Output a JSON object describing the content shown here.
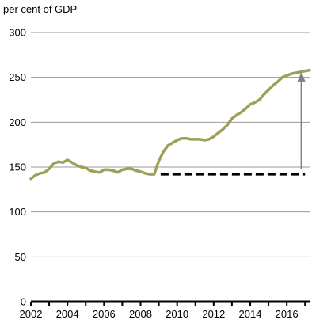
{
  "chart_data": {
    "type": "line",
    "ylabel": "per cent of GDP",
    "ylim": [
      0,
      300
    ],
    "xlim": [
      2002,
      2017.25
    ],
    "y_ticks": [
      0,
      50,
      100,
      150,
      200,
      250,
      300
    ],
    "x_ticks": [
      2002,
      2004,
      2006,
      2008,
      2010,
      2012,
      2014,
      2016
    ],
    "grid": "horizontal",
    "series": [
      {
        "color": "#9ea05a",
        "x": [
          2002.0,
          2002.25,
          2002.5,
          2002.75,
          2003.0,
          2003.25,
          2003.5,
          2003.75,
          2004.0,
          2004.25,
          2004.5,
          2004.75,
          2005.0,
          2005.25,
          2005.5,
          2005.75,
          2006.0,
          2006.25,
          2006.5,
          2006.75,
          2007.0,
          2007.25,
          2007.5,
          2007.75,
          2008.0,
          2008.25,
          2008.5,
          2008.75,
          2009.0,
          2009.25,
          2009.5,
          2009.75,
          2010.0,
          2010.25,
          2010.5,
          2010.75,
          2011.0,
          2011.25,
          2011.5,
          2011.75,
          2012.0,
          2012.25,
          2012.5,
          2012.75,
          2013.0,
          2013.25,
          2013.5,
          2013.75,
          2014.0,
          2014.25,
          2014.5,
          2014.75,
          2015.0,
          2015.25,
          2015.5,
          2015.75,
          2016.0,
          2016.25,
          2016.5,
          2016.75,
          2017.0,
          2017.25
        ],
        "values": [
          137,
          141,
          143,
          144,
          148,
          154,
          156,
          155,
          158,
          155,
          152,
          150,
          149,
          146,
          145,
          144,
          147,
          147,
          146,
          144,
          147,
          148,
          148,
          146,
          145,
          143,
          142,
          142,
          157,
          167,
          174,
          177,
          180,
          182,
          182,
          181,
          181,
          181,
          180,
          181,
          184,
          188,
          192,
          197,
          204,
          208,
          211,
          215,
          220,
          222,
          225,
          231,
          236,
          241,
          245,
          250,
          252,
          254,
          255,
          256,
          257,
          258
        ]
      }
    ],
    "annotations": [
      {
        "type": "dashed-line",
        "y": 142,
        "x_start": 2009.1,
        "x_end": 2017.0,
        "color": "#000000"
      },
      {
        "type": "arrow",
        "x": 2016.8,
        "y_from": 148,
        "y_to": 256,
        "color": "#808080"
      }
    ]
  }
}
